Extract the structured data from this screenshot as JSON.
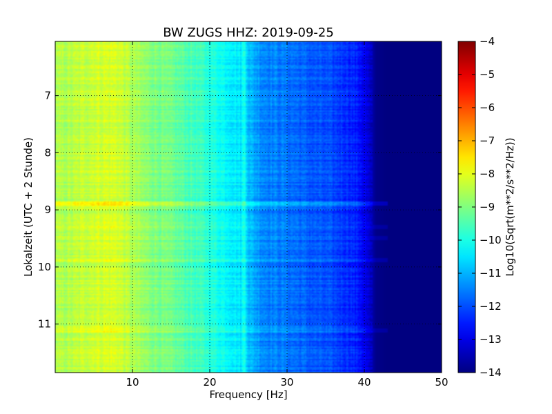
{
  "chart_data": {
    "type": "heatmap",
    "title": "BW ZUGS HHZ: 2019-09-25",
    "xlabel": "Frequency [Hz]",
    "ylabel": "Lokalzeit (UTC + 2 Stunde)",
    "xlim": [
      0,
      50
    ],
    "ylim": [
      11.85,
      6.05
    ],
    "y_inverted": true,
    "xticks": [
      10,
      20,
      30,
      40,
      50
    ],
    "yticks": [
      7,
      8,
      9,
      10,
      11
    ],
    "grid": true,
    "colormap": "jet",
    "colorbar": {
      "label": "Log10(Sqrt(m**2/s**2/Hz))",
      "range": [
        -14,
        -4
      ],
      "ticks": [
        -4,
        -5,
        -6,
        -7,
        -8,
        -9,
        -10,
        -11,
        -12,
        -13,
        -14
      ]
    },
    "frequency_profile": {
      "frequency_hz": [
        0,
        2,
        5,
        8,
        10,
        12,
        15,
        18,
        20,
        22,
        24,
        24.5,
        25,
        27,
        30,
        33,
        36,
        38,
        39.5,
        40.5,
        41.5,
        43,
        50
      ],
      "log10_amplitude": [
        -8.6,
        -8.5,
        -8.2,
        -8.15,
        -8.6,
        -8.9,
        -9.2,
        -9.6,
        -9.9,
        -10.2,
        -10.5,
        -10.0,
        -10.9,
        -11.4,
        -11.6,
        -11.9,
        -12.1,
        -12.3,
        -12.6,
        -13.2,
        -13.9,
        -14,
        -14
      ]
    },
    "noise_bands": [
      {
        "time": 8.9,
        "amplitude_offset": 0.55
      },
      {
        "time": 9.3,
        "amplitude_offset": 0.3
      },
      {
        "time": 9.5,
        "amplitude_offset": 0.3
      },
      {
        "time": 9.88,
        "amplitude_offset": 0.35
      },
      {
        "time": 11.12,
        "amplitude_offset": 0.3
      }
    ]
  }
}
